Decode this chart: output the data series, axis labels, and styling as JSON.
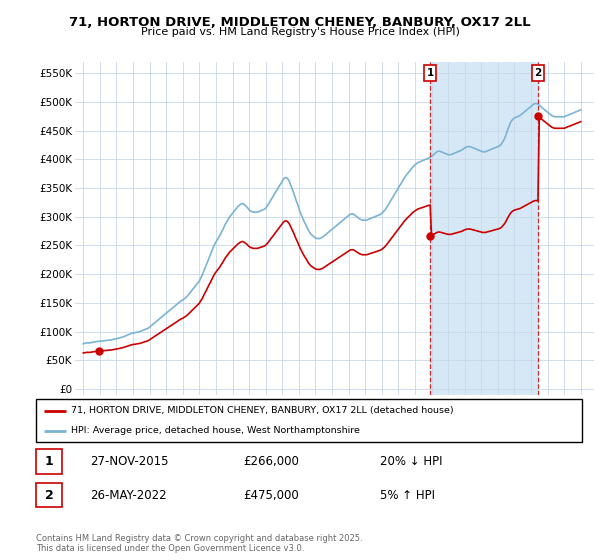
{
  "title": "71, HORTON DRIVE, MIDDLETON CHENEY, BANBURY, OX17 2LL",
  "subtitle": "Price paid vs. HM Land Registry's House Price Index (HPI)",
  "hpi_label": "HPI: Average price, detached house, West Northamptonshire",
  "property_label": "71, HORTON DRIVE, MIDDLETON CHENEY, BANBURY, OX17 2LL (detached house)",
  "hpi_color": "#7ab3d4",
  "property_color": "#cc0000",
  "shade_color": "#d6e8f5",
  "marker1_date": "27-NOV-2015",
  "marker1_price": 266000,
  "marker1_pct": "20% ↓ HPI",
  "marker2_date": "26-MAY-2022",
  "marker2_price": 475000,
  "marker2_pct": "5% ↑ HPI",
  "yticks": [
    0,
    50000,
    100000,
    150000,
    200000,
    250000,
    300000,
    350000,
    400000,
    450000,
    500000,
    550000
  ],
  "ylim": [
    -10000,
    570000
  ],
  "xlim_start": 1994.5,
  "xlim_end": 2025.8,
  "footer": "Contains HM Land Registry data © Crown copyright and database right 2025.\nThis data is licensed under the Open Government Licence v3.0.",
  "hpi_years": [
    1995.0,
    1995.08,
    1995.17,
    1995.25,
    1995.33,
    1995.42,
    1995.5,
    1995.58,
    1995.67,
    1995.75,
    1995.83,
    1995.92,
    1996.0,
    1996.08,
    1996.17,
    1996.25,
    1996.33,
    1996.42,
    1996.5,
    1996.58,
    1996.67,
    1996.75,
    1996.83,
    1996.92,
    1997.0,
    1997.08,
    1997.17,
    1997.25,
    1997.33,
    1997.42,
    1997.5,
    1997.58,
    1997.67,
    1997.75,
    1997.83,
    1997.92,
    1998.0,
    1998.08,
    1998.17,
    1998.25,
    1998.33,
    1998.42,
    1998.5,
    1998.58,
    1998.67,
    1998.75,
    1998.83,
    1998.92,
    1999.0,
    1999.08,
    1999.17,
    1999.25,
    1999.33,
    1999.42,
    1999.5,
    1999.58,
    1999.67,
    1999.75,
    1999.83,
    1999.92,
    2000.0,
    2000.08,
    2000.17,
    2000.25,
    2000.33,
    2000.42,
    2000.5,
    2000.58,
    2000.67,
    2000.75,
    2000.83,
    2000.92,
    2001.0,
    2001.08,
    2001.17,
    2001.25,
    2001.33,
    2001.42,
    2001.5,
    2001.58,
    2001.67,
    2001.75,
    2001.83,
    2001.92,
    2002.0,
    2002.08,
    2002.17,
    2002.25,
    2002.33,
    2002.42,
    2002.5,
    2002.58,
    2002.67,
    2002.75,
    2002.83,
    2002.92,
    2003.0,
    2003.08,
    2003.17,
    2003.25,
    2003.33,
    2003.42,
    2003.5,
    2003.58,
    2003.67,
    2003.75,
    2003.83,
    2003.92,
    2004.0,
    2004.08,
    2004.17,
    2004.25,
    2004.33,
    2004.42,
    2004.5,
    2004.58,
    2004.67,
    2004.75,
    2004.83,
    2004.92,
    2005.0,
    2005.08,
    2005.17,
    2005.25,
    2005.33,
    2005.42,
    2005.5,
    2005.58,
    2005.67,
    2005.75,
    2005.83,
    2005.92,
    2006.0,
    2006.08,
    2006.17,
    2006.25,
    2006.33,
    2006.42,
    2006.5,
    2006.58,
    2006.67,
    2006.75,
    2006.83,
    2006.92,
    2007.0,
    2007.08,
    2007.17,
    2007.25,
    2007.33,
    2007.42,
    2007.5,
    2007.58,
    2007.67,
    2007.75,
    2007.83,
    2007.92,
    2008.0,
    2008.08,
    2008.17,
    2008.25,
    2008.33,
    2008.42,
    2008.5,
    2008.58,
    2008.67,
    2008.75,
    2008.83,
    2008.92,
    2009.0,
    2009.08,
    2009.17,
    2009.25,
    2009.33,
    2009.42,
    2009.5,
    2009.58,
    2009.67,
    2009.75,
    2009.83,
    2009.92,
    2010.0,
    2010.08,
    2010.17,
    2010.25,
    2010.33,
    2010.42,
    2010.5,
    2010.58,
    2010.67,
    2010.75,
    2010.83,
    2010.92,
    2011.0,
    2011.08,
    2011.17,
    2011.25,
    2011.33,
    2011.42,
    2011.5,
    2011.58,
    2011.67,
    2011.75,
    2011.83,
    2011.92,
    2012.0,
    2012.08,
    2012.17,
    2012.25,
    2012.33,
    2012.42,
    2012.5,
    2012.58,
    2012.67,
    2012.75,
    2012.83,
    2012.92,
    2013.0,
    2013.08,
    2013.17,
    2013.25,
    2013.33,
    2013.42,
    2013.5,
    2013.58,
    2013.67,
    2013.75,
    2013.83,
    2013.92,
    2014.0,
    2014.08,
    2014.17,
    2014.25,
    2014.33,
    2014.42,
    2014.5,
    2014.58,
    2014.67,
    2014.75,
    2014.83,
    2014.92,
    2015.0,
    2015.08,
    2015.17,
    2015.25,
    2015.33,
    2015.42,
    2015.5,
    2015.58,
    2015.67,
    2015.75,
    2015.83,
    2015.92,
    2016.0,
    2016.08,
    2016.17,
    2016.25,
    2016.33,
    2016.42,
    2016.5,
    2016.58,
    2016.67,
    2016.75,
    2016.83,
    2016.92,
    2017.0,
    2017.08,
    2017.17,
    2017.25,
    2017.33,
    2017.42,
    2017.5,
    2017.58,
    2017.67,
    2017.75,
    2017.83,
    2017.92,
    2018.0,
    2018.08,
    2018.17,
    2018.25,
    2018.33,
    2018.42,
    2018.5,
    2018.58,
    2018.67,
    2018.75,
    2018.83,
    2018.92,
    2019.0,
    2019.08,
    2019.17,
    2019.25,
    2019.33,
    2019.42,
    2019.5,
    2019.58,
    2019.67,
    2019.75,
    2019.83,
    2019.92,
    2020.0,
    2020.08,
    2020.17,
    2020.25,
    2020.33,
    2020.42,
    2020.5,
    2020.58,
    2020.67,
    2020.75,
    2020.83,
    2020.92,
    2021.0,
    2021.08,
    2021.17,
    2021.25,
    2021.33,
    2021.42,
    2021.5,
    2021.58,
    2021.67,
    2021.75,
    2021.83,
    2021.92,
    2022.0,
    2022.08,
    2022.17,
    2022.25,
    2022.33,
    2022.42,
    2022.5,
    2022.58,
    2022.67,
    2022.75,
    2022.83,
    2022.92,
    2023.0,
    2023.08,
    2023.17,
    2023.25,
    2023.33,
    2023.42,
    2023.5,
    2023.58,
    2023.67,
    2023.75,
    2023.83,
    2023.92,
    2024.0,
    2024.08,
    2024.17,
    2024.25,
    2024.33,
    2024.42,
    2024.5,
    2024.58,
    2024.67,
    2024.75,
    2024.83,
    2024.92,
    2025.0
  ],
  "hpi_values": [
    79000,
    79500,
    80000,
    80500,
    80200,
    80500,
    80800,
    81500,
    82000,
    82500,
    82800,
    83000,
    83200,
    83500,
    83800,
    84000,
    84200,
    84500,
    84800,
    85000,
    85500,
    86000,
    86500,
    87000,
    87500,
    88000,
    88800,
    89500,
    90000,
    91000,
    92000,
    93000,
    94000,
    95000,
    96000,
    97000,
    97500,
    98000,
    98500,
    99000,
    99500,
    100000,
    101000,
    102000,
    103000,
    104000,
    105000,
    106000,
    108000,
    110000,
    112000,
    114000,
    116000,
    118000,
    120000,
    122000,
    124000,
    126000,
    128000,
    130000,
    132000,
    134000,
    136000,
    138000,
    140000,
    142000,
    144000,
    146000,
    148000,
    150000,
    152000,
    154000,
    155000,
    157000,
    159000,
    161000,
    164000,
    167000,
    170000,
    173000,
    176000,
    179000,
    182000,
    185000,
    188000,
    193000,
    198000,
    204000,
    210000,
    216000,
    222000,
    228000,
    234000,
    240000,
    246000,
    252000,
    256000,
    260000,
    264000,
    268000,
    273000,
    278000,
    283000,
    288000,
    292000,
    296000,
    300000,
    303000,
    306000,
    309000,
    312000,
    315000,
    318000,
    320000,
    322000,
    323000,
    322000,
    320000,
    318000,
    315000,
    312000,
    310000,
    309000,
    308000,
    308000,
    308000,
    308000,
    309000,
    310000,
    311000,
    312000,
    313000,
    315000,
    318000,
    322000,
    326000,
    330000,
    334000,
    338000,
    342000,
    346000,
    350000,
    354000,
    358000,
    362000,
    366000,
    368000,
    368000,
    366000,
    362000,
    356000,
    350000,
    343000,
    336000,
    329000,
    322000,
    315000,
    308000,
    302000,
    296000,
    291000,
    286000,
    281000,
    276000,
    272000,
    269000,
    267000,
    265000,
    263000,
    262000,
    262000,
    262000,
    263000,
    264000,
    266000,
    268000,
    270000,
    272000,
    274000,
    276000,
    278000,
    280000,
    282000,
    284000,
    286000,
    288000,
    290000,
    292000,
    294000,
    296000,
    298000,
    300000,
    302000,
    304000,
    305000,
    305000,
    304000,
    302000,
    300000,
    298000,
    296000,
    295000,
    294000,
    294000,
    294000,
    294000,
    295000,
    296000,
    297000,
    298000,
    299000,
    300000,
    301000,
    302000,
    303000,
    304000,
    306000,
    308000,
    311000,
    314000,
    318000,
    322000,
    326000,
    330000,
    334000,
    338000,
    342000,
    346000,
    350000,
    354000,
    358000,
    362000,
    366000,
    370000,
    373000,
    376000,
    379000,
    382000,
    385000,
    388000,
    390000,
    392000,
    394000,
    395000,
    396000,
    397000,
    398000,
    399000,
    400000,
    401000,
    402000,
    403000,
    405000,
    407000,
    409000,
    411000,
    413000,
    414000,
    414000,
    413000,
    412000,
    411000,
    410000,
    409000,
    408000,
    408000,
    408000,
    409000,
    410000,
    411000,
    412000,
    413000,
    414000,
    415000,
    416000,
    418000,
    420000,
    421000,
    422000,
    422000,
    422000,
    421000,
    420000,
    419000,
    418000,
    417000,
    416000,
    415000,
    414000,
    413000,
    413000,
    413000,
    414000,
    415000,
    416000,
    417000,
    418000,
    419000,
    420000,
    421000,
    422000,
    423000,
    425000,
    428000,
    432000,
    437000,
    443000,
    450000,
    457000,
    463000,
    467000,
    470000,
    472000,
    473000,
    474000,
    475000,
    476000,
    478000,
    480000,
    482000,
    484000,
    486000,
    488000,
    490000,
    492000,
    494000,
    496000,
    497000,
    497000,
    496000,
    494000,
    492000,
    490000,
    488000,
    486000,
    484000,
    482000,
    480000,
    478000,
    476000,
    475000,
    474000,
    474000,
    474000,
    474000,
    474000,
    474000,
    474000,
    474000,
    475000,
    476000,
    477000,
    478000,
    479000,
    480000,
    481000,
    482000,
    483000,
    484000,
    485000,
    486000
  ],
  "sale1_year": 1995.92,
  "sale1_price": 66000,
  "sale2_year": 2015.92,
  "sale2_price": 266000,
  "sale3_year": 2022.42,
  "sale3_price": 475000,
  "marker1_year": 2015.92,
  "marker2_year": 2022.42
}
